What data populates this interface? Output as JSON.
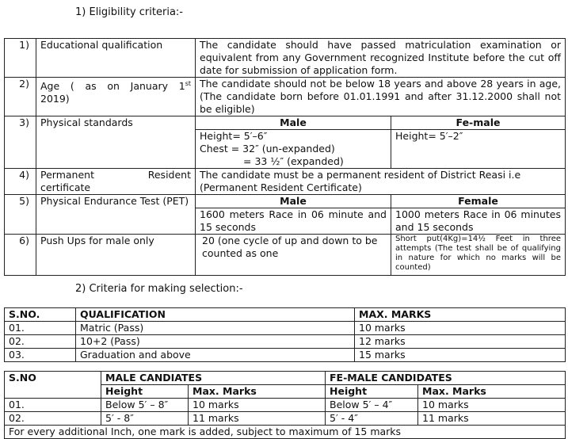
{
  "section1_title": "1)  Eligibility criteria:-",
  "eligibility": [
    {
      "no": "1)",
      "item": "Educational qualification",
      "detail": "The candidate should have passed matriculation examination or equivalent from any Government recognized Institute before the cut off date for submission of application form."
    },
    {
      "no": "2)",
      "item_a": "Age ( as on January 1",
      "item_sup": "st",
      "item_b": "2019)",
      "detail": "The candidate should not be below 18 years and above 28 years in age, (The candidate born before 01.01.1991 and after 31.12.2000 shall not be eligible)"
    },
    {
      "no": "3)",
      "item": "Physical standards",
      "male_head": "Male",
      "female_head": "Fe-male",
      "male_l1": "Height= 5′–6″",
      "male_l2": "Chest = 32″ (un-expanded)",
      "male_l3": "= 33 ½″ (expanded)",
      "female": "Height= 5′–2″"
    },
    {
      "no": "4)",
      "item": "Permanent Resident certificate",
      "detail": "The candidate must be a permanent resident of District Reasi i.e (Permanent Resident Certificate)"
    },
    {
      "no": "5)",
      "item": "Physical Endurance Test (PET)",
      "male_head": "Male",
      "female_head": "Female",
      "male": "1600 meters Race in 06 minute and 15 seconds",
      "female": "1000 meters Race in 06 minutes and 15 seconds"
    },
    {
      "no": "6)",
      "item": "Push Ups for male only",
      "male": "20 (one cycle of up and down to be counted as one",
      "female": "Short put(4Kg)=14½  Feet in three attempts (The test shall be of qualifying in nature for which no marks will be counted)"
    }
  ],
  "section2_title": "2)  Criteria for making selection:-",
  "qualification_table": {
    "headers": [
      "S.NO.",
      "QUALIFICATION",
      "MAX. MARKS"
    ],
    "rows": [
      [
        "01.",
        "Matric (Pass)",
        "10 marks"
      ],
      [
        "02.",
        "10+2 (Pass)",
        "12 marks"
      ],
      [
        "03.",
        "Graduation and above",
        "15 marks"
      ]
    ]
  },
  "height_table": {
    "sno": "S.NO",
    "male": "MALE CANDIATES",
    "female": "FE-MALE CANDIDATES",
    "sub": [
      "Height",
      "Max. Marks",
      "Height",
      "Max. Marks"
    ],
    "rows": [
      [
        "01.",
        "Below 5′ – 8″",
        "10 marks",
        "Below 5′ – 4″",
        "10 marks"
      ],
      [
        "02.",
        "5′ - 8″",
        "11 marks",
        "5′ - 4″",
        "11 marks"
      ]
    ],
    "note": "For every additional Inch, one mark is added, subject to maximum of 15 marks"
  }
}
